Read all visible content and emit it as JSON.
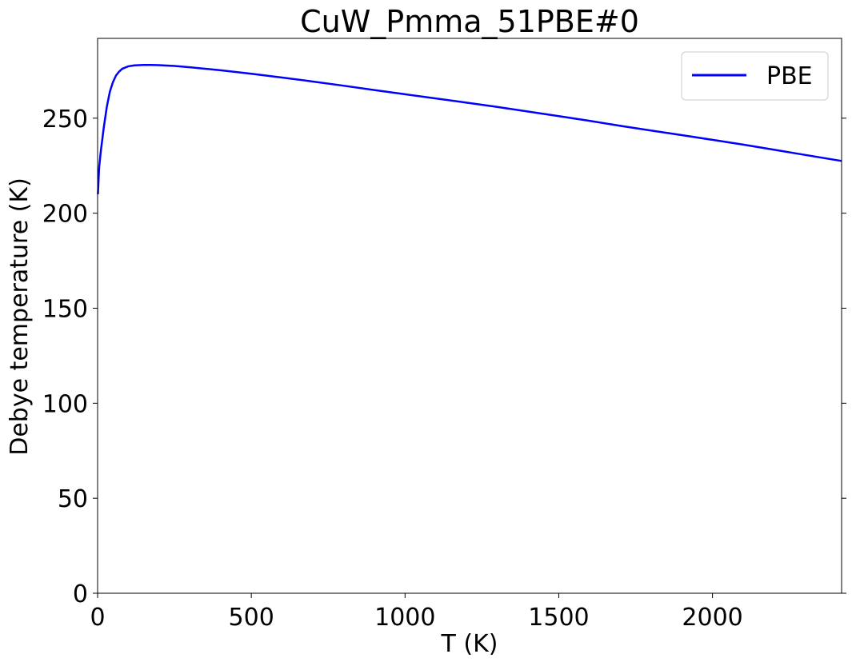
{
  "chart_data": {
    "type": "line",
    "title": "CuW_Pmma_51PBE#0",
    "xlabel": "T (K)",
    "ylabel": "Debye temperature (K)",
    "xlim": [
      0,
      2420
    ],
    "ylim": [
      0,
      292
    ],
    "xticks": [
      0,
      500,
      1000,
      1500,
      2000
    ],
    "yticks": [
      0,
      50,
      100,
      150,
      200,
      250
    ],
    "grid": false,
    "legend": {
      "position": "top-right",
      "entries": [
        "PBE"
      ]
    },
    "series": [
      {
        "name": "PBE",
        "color": "#0000ff",
        "x": [
          1,
          5,
          10,
          20,
          30,
          40,
          50,
          60,
          70,
          80,
          100,
          120,
          150,
          175,
          200,
          250,
          300,
          400,
          500,
          600,
          700,
          800,
          900,
          1000,
          1100,
          1200,
          1300,
          1400,
          1500,
          1600,
          1700,
          1800,
          1900,
          2000,
          2100,
          2200,
          2300,
          2420
        ],
        "y": [
          210,
          224,
          232,
          245,
          256,
          264,
          269,
          272.5,
          274.5,
          276,
          277.3,
          277.8,
          278,
          278,
          277.9,
          277.5,
          276.8,
          275.2,
          273.4,
          271.4,
          269.3,
          267.1,
          264.8,
          262.6,
          260.4,
          258.2,
          255.9,
          253.5,
          251.1,
          248.6,
          246,
          243.5,
          241.1,
          238.6,
          236.1,
          233.4,
          230.7,
          227.5
        ]
      }
    ]
  }
}
